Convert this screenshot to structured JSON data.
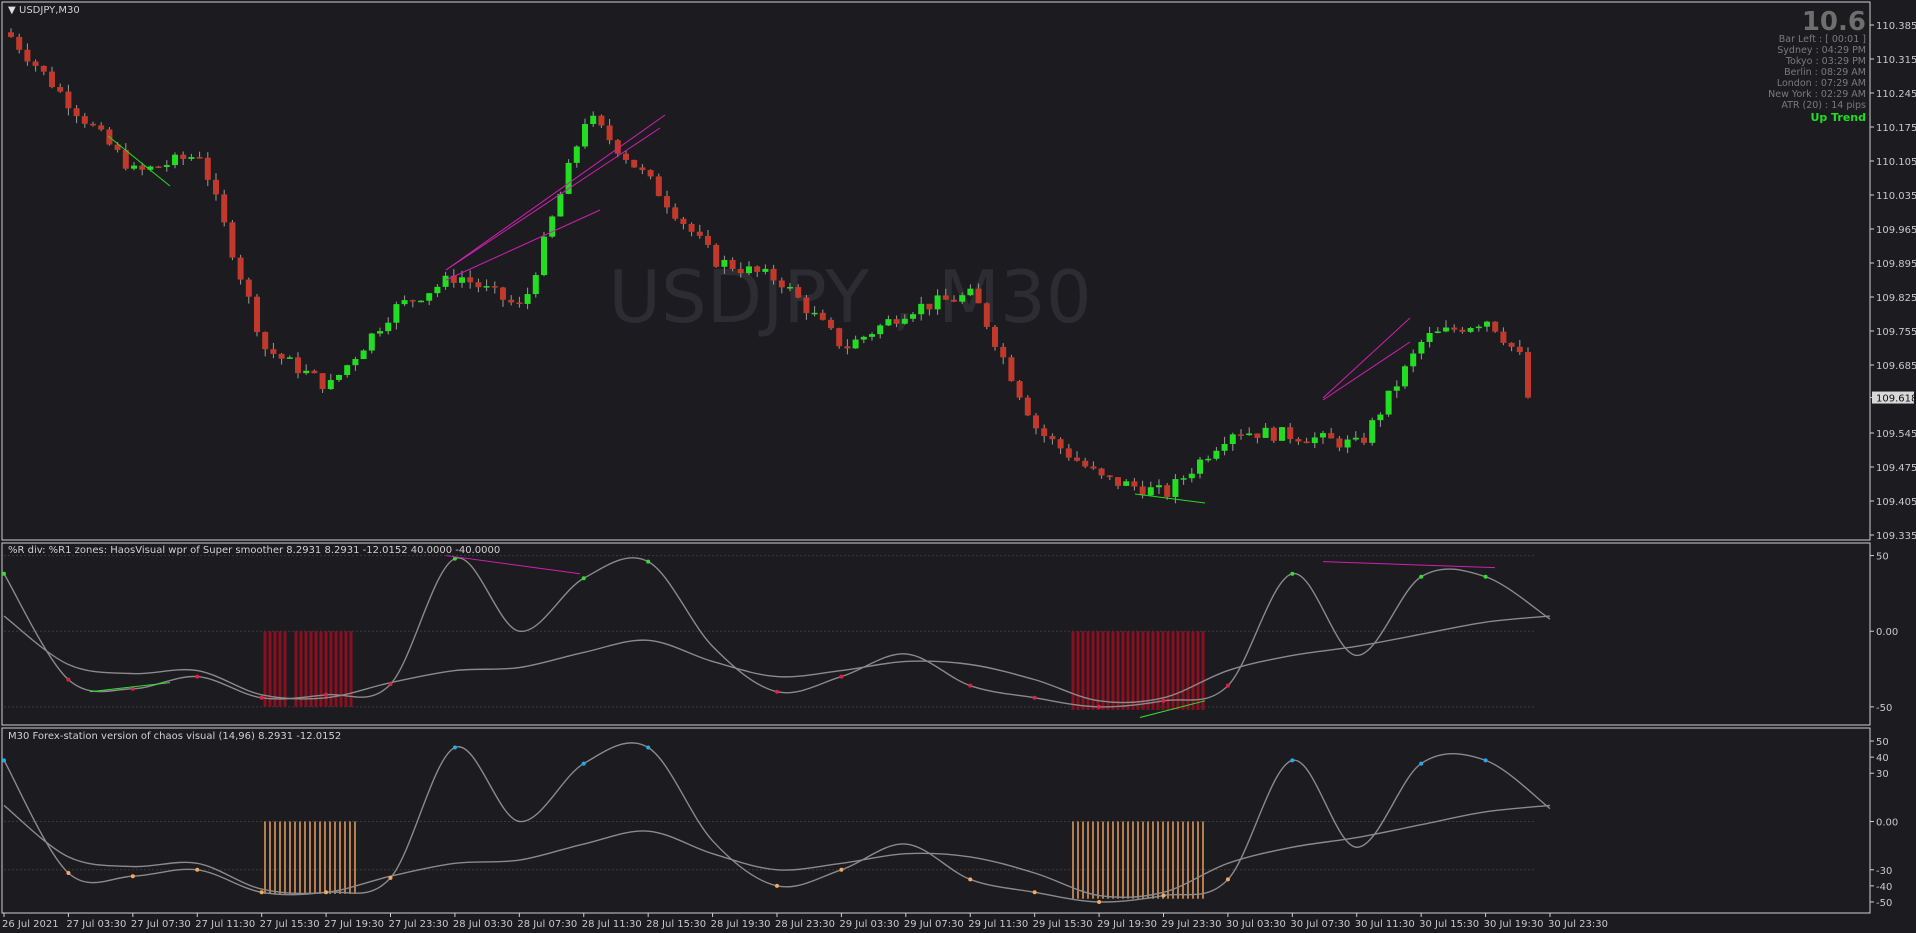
{
  "window": {
    "symbol_title": "USDJPY,M30",
    "watermark": "USDJPY , M30",
    "current_price": "109.618"
  },
  "info_panel": {
    "spread": "10.6",
    "lines": [
      "Bar Left : [ 00:01 ]",
      "Sydney : 04:29 PM",
      "Tokyo : 03:29 PM",
      "Berlin : 08:29 AM",
      "London : 07:29 AM",
      "New York : 02:29 AM",
      "ATR (20) : 14 pips"
    ],
    "trend": "Up Trend",
    "trend_color": "#22dd22"
  },
  "panel1": {
    "title": "%R div: %R1 zones:  HaosVisual wpr of Super smoother 8.2931 8.2931 -12.0152 40.0000 -40.0000",
    "yticks": [
      "50",
      "0.00",
      "-50"
    ]
  },
  "panel2": {
    "title": "M30 Forex-station version of chaos visual (14,96) 8.2931 -12.0152",
    "yticks": [
      "50",
      "40",
      "30",
      "0.00",
      "-30",
      "-40",
      "-50"
    ]
  },
  "xaxis": {
    "labels": [
      "26 Jul 2021",
      "27 Jul 03:30",
      "27 Jul 07:30",
      "27 Jul 11:30",
      "27 Jul 15:30",
      "27 Jul 19:30",
      "27 Jul 23:30",
      "28 Jul 03:30",
      "28 Jul 07:30",
      "28 Jul 11:30",
      "28 Jul 15:30",
      "28 Jul 19:30",
      "28 Jul 23:30",
      "29 Jul 03:30",
      "29 Jul 07:30",
      "29 Jul 11:30",
      "29 Jul 15:30",
      "29 Jul 19:30",
      "29 Jul 23:30",
      "30 Jul 03:30",
      "30 Jul 07:30",
      "30 Jul 11:30",
      "30 Jul 15:30",
      "30 Jul 19:30",
      "30 Jul 23:30"
    ]
  },
  "colors": {
    "background": "#1c1c20",
    "bull": "#22dd22",
    "bear": "#c0392b",
    "divergence": "#d020b0",
    "wpr_up": "#33dd33",
    "wpr_down": "#e0204a",
    "wpr_zone": "#8a1020",
    "chaos_up": "#22aaee",
    "chaos_down": "#f5a860",
    "chaos_zone": "#f5a860",
    "gray_line": "#8a8a8a"
  },
  "chart_data": [
    {
      "type": "candlestick",
      "title": "USDJPY,M30",
      "ylim": [
        109.335,
        110.42
      ],
      "yticks": [
        110.385,
        110.315,
        110.245,
        110.175,
        110.105,
        110.035,
        109.965,
        109.895,
        109.825,
        109.755,
        109.685,
        109.618,
        109.545,
        109.475,
        109.405,
        109.335
      ],
      "x": [
        "26 Jul 2021",
        "27 Jul 03:30",
        "27 Jul 07:30",
        "27 Jul 11:30",
        "27 Jul 15:30",
        "27 Jul 19:30",
        "27 Jul 23:30",
        "28 Jul 03:30",
        "28 Jul 07:30",
        "28 Jul 11:30",
        "28 Jul 15:30",
        "28 Jul 19:30",
        "28 Jul 23:30",
        "29 Jul 03:30",
        "29 Jul 07:30",
        "29 Jul 11:30",
        "29 Jul 15:30",
        "29 Jul 19:30",
        "29 Jul 23:30",
        "30 Jul 03:30",
        "30 Jul 07:30",
        "30 Jul 11:30",
        "30 Jul 15:30",
        "30 Jul 19:30",
        "30 Jul 23:30"
      ],
      "close": [
        110.37,
        110.22,
        110.08,
        110.12,
        109.72,
        109.64,
        109.8,
        109.87,
        109.8,
        110.2,
        110.06,
        109.9,
        109.86,
        109.72,
        109.8,
        109.83,
        109.55,
        109.45,
        109.42,
        109.55,
        109.54,
        109.52,
        109.74,
        109.78,
        109.618
      ],
      "last_price": 109.618
    },
    {
      "type": "line",
      "title": "%R div: %R1 zones:  HaosVisual wpr of Super smoother 8.2931 8.2931 -12.0152 40.0000 -40.0000",
      "ylim": [
        -60,
        55
      ],
      "yticks": [
        50,
        0,
        -50
      ],
      "x": [
        "26 Jul 2021",
        "27 Jul 03:30",
        "27 Jul 07:30",
        "27 Jul 11:30",
        "27 Jul 15:30",
        "27 Jul 19:30",
        "27 Jul 23:30",
        "28 Jul 03:30",
        "28 Jul 07:30",
        "28 Jul 11:30",
        "28 Jul 15:30",
        "28 Jul 19:30",
        "28 Jul 23:30",
        "29 Jul 03:30",
        "29 Jul 07:30",
        "29 Jul 11:30",
        "29 Jul 15:30",
        "29 Jul 19:30",
        "29 Jul 23:30",
        "30 Jul 03:30",
        "30 Jul 07:30",
        "30 Jul 11:30",
        "30 Jul 15:30",
        "30 Jul 19:30",
        "30 Jul 23:30"
      ],
      "series": [
        {
          "values": [
            38,
            -32,
            -38,
            -30,
            -44,
            -42,
            -35,
            48,
            0,
            35,
            46,
            -10,
            -40,
            -30,
            -15,
            -36,
            -44,
            -50,
            -46,
            -36,
            38,
            -16,
            36,
            36,
            8
          ]
        },
        {
          "values": [
            10,
            -22,
            -28,
            -26,
            -42,
            -44,
            -34,
            -26,
            -24,
            -14,
            -6,
            -20,
            -30,
            -26,
            -20,
            -22,
            -32,
            -46,
            -44,
            -26,
            -16,
            -10,
            -2,
            6,
            10
          ]
        }
      ]
    },
    {
      "type": "line",
      "title": "M30 Forex-station version of chaos visual (14,96) 8.2931 -12.0152",
      "ylim": [
        -55,
        55
      ],
      "yticks": [
        50,
        40,
        30,
        0,
        -30,
        -40,
        -50
      ],
      "x": [
        "26 Jul 2021",
        "27 Jul 03:30",
        "27 Jul 07:30",
        "27 Jul 11:30",
        "27 Jul 15:30",
        "27 Jul 19:30",
        "27 Jul 23:30",
        "28 Jul 03:30",
        "28 Jul 07:30",
        "28 Jul 11:30",
        "28 Jul 15:30",
        "28 Jul 19:30",
        "28 Jul 23:30",
        "29 Jul 03:30",
        "29 Jul 07:30",
        "29 Jul 11:30",
        "29 Jul 15:30",
        "29 Jul 19:30",
        "29 Jul 23:30",
        "30 Jul 03:30",
        "30 Jul 07:30",
        "30 Jul 11:30",
        "30 Jul 15:30",
        "30 Jul 19:30",
        "30 Jul 23:30"
      ],
      "series": [
        {
          "values": [
            38,
            -32,
            -34,
            -30,
            -44,
            -44,
            -35,
            46,
            0,
            36,
            46,
            -12,
            -40,
            -30,
            -14,
            -36,
            -44,
            -50,
            -46,
            -36,
            38,
            -16,
            36,
            38,
            8
          ]
        },
        {
          "values": [
            10,
            -22,
            -28,
            -26,
            -42,
            -44,
            -34,
            -26,
            -24,
            -14,
            -6,
            -20,
            -30,
            -26,
            -20,
            -22,
            -32,
            -46,
            -44,
            -26,
            -16,
            -10,
            -2,
            6,
            10
          ]
        }
      ]
    }
  ]
}
